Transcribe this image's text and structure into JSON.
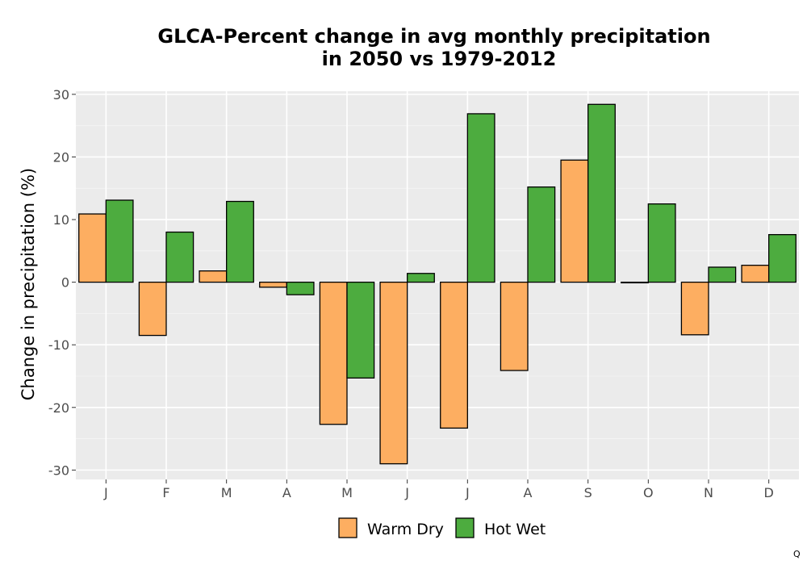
{
  "chart_data": {
    "type": "bar",
    "title_line1": "GLCA-Percent change in avg monthly precipitation",
    "title_line2": "in 2050 vs 1979-2012",
    "xlabel": "",
    "ylabel": "Change in precipitation (%)",
    "categories": [
      "J",
      "F",
      "M",
      "A",
      "M",
      "J",
      "J",
      "A",
      "S",
      "O",
      "N",
      "D"
    ],
    "series": [
      {
        "name": "Warm Dry",
        "color": "#fdae61",
        "values": [
          10.9,
          -8.5,
          1.8,
          -0.8,
          -22.7,
          -29.0,
          -23.3,
          -14.1,
          19.5,
          -0.1,
          -8.4,
          2.7
        ]
      },
      {
        "name": "Hot Wet",
        "color": "#4dac3f",
        "values": [
          13.1,
          8.0,
          12.9,
          -2.0,
          -15.3,
          1.4,
          26.9,
          15.2,
          28.4,
          12.5,
          2.4,
          7.6
        ]
      }
    ],
    "ylim": [
      -31.5,
      30.5
    ],
    "yticks": [
      -30,
      -20,
      -10,
      0,
      10,
      20,
      30
    ],
    "ytick_labels": [
      "-30",
      "-20",
      "-10",
      "0",
      "10",
      "20",
      "30"
    ],
    "grid": true,
    "legend_position": "bottom"
  },
  "corner_mark": "Q"
}
